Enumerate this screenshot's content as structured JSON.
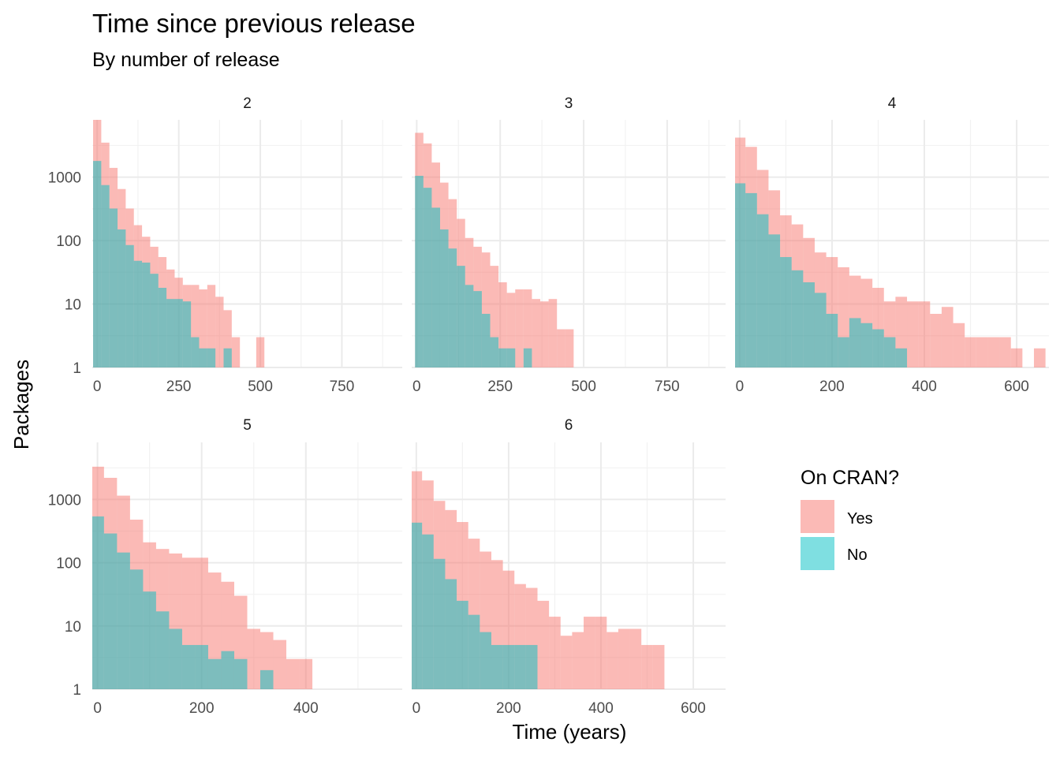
{
  "chart_data": {
    "type": "bar",
    "title": "Time since previous release",
    "subtitle": "By number of release",
    "xlabel": "Time (years)",
    "ylabel": "Packages",
    "yscale": "log10",
    "ylim": [
      1,
      8000
    ],
    "y_ticks": [
      1,
      10,
      100,
      1000
    ],
    "y_tick_labels": [
      "1",
      "10",
      "100",
      "1000"
    ],
    "grid": true,
    "legend": {
      "title": "On CRAN?",
      "placement": "right",
      "entries": [
        {
          "label": "Yes",
          "color": "#F8766D"
        },
        {
          "label": "No",
          "color": "#00BFC4"
        }
      ]
    },
    "panels": [
      {
        "strip": "2",
        "xlim": [
          -15,
          935
        ],
        "x_ticks": [
          0,
          250,
          500,
          750
        ],
        "x_tick_labels": [
          "0",
          "250",
          "500",
          "750"
        ],
        "bin_start": -12.5,
        "bin_width": 25,
        "series": [
          {
            "name": "Yes",
            "values": [
              8000,
              3500,
              1400,
              650,
              320,
              175,
              115,
              80,
              55,
              35,
              26,
              20,
              20,
              17,
              20,
              13,
              8,
              3,
              0,
              0,
              3
            ]
          },
          {
            "name": "No",
            "values": [
              1800,
              750,
              320,
              150,
              85,
              48,
              45,
              30,
              18,
              12,
              12,
              11,
              3,
              2,
              2,
              0,
              2,
              0,
              0,
              0,
              0
            ]
          }
        ]
      },
      {
        "strip": "3",
        "xlim": [
          -15,
          925
        ],
        "x_ticks": [
          0,
          250,
          500,
          750
        ],
        "x_tick_labels": [
          "0",
          "250",
          "500",
          "750"
        ],
        "bin_start": -5,
        "bin_width": 25,
        "series": [
          {
            "name": "Yes",
            "values": [
              5000,
              3400,
              1700,
              820,
              450,
              220,
              110,
              80,
              65,
              40,
              22,
              15,
              17,
              17,
              12,
              11,
              12,
              4,
              4,
              0,
              0,
              0,
              0,
              0,
              0,
              0,
              0,
              0,
              0,
              0,
              0,
              0,
              0,
              0,
              0,
              0,
              0,
              0,
              0,
              0,
              0,
              0,
              0,
              0,
              0,
              0,
              0,
              0
            ]
          },
          {
            "name": "No",
            "values": [
              1050,
              680,
              330,
              150,
              75,
              40,
              20,
              16,
              7,
              3,
              2,
              2,
              1,
              2,
              1
            ]
          }
        ]
      },
      {
        "strip": "4",
        "xlim": [
          -10,
          670
        ],
        "x_ticks": [
          0,
          200,
          400,
          600
        ],
        "x_tick_labels": [
          "0",
          "200",
          "400",
          "600"
        ],
        "bin_start": -12.5,
        "bin_width": 25,
        "series": [
          {
            "name": "Yes",
            "values": [
              4200,
              3000,
              1300,
              620,
              250,
              180,
              110,
              65,
              55,
              38,
              28,
              25,
              18,
              11,
              13,
              11,
              11,
              7,
              9,
              5,
              3,
              3,
              3,
              3,
              2,
              0,
              2
            ]
          },
          {
            "name": "No",
            "values": [
              800,
              560,
              260,
              125,
              55,
              34,
              22,
              15,
              7,
              3,
              6,
              5,
              4,
              3,
              2
            ]
          }
        ]
      },
      {
        "strip": "5",
        "xlim": [
          -10,
          585
        ],
        "x_ticks": [
          0,
          200,
          400
        ],
        "x_tick_labels": [
          "0",
          "200",
          "400"
        ],
        "bin_start": -12.5,
        "bin_width": 25,
        "series": [
          {
            "name": "Yes",
            "values": [
              3300,
              2200,
              1150,
              480,
              210,
              165,
              140,
              120,
              120,
              70,
              50,
              30,
              9,
              8,
              6,
              3,
              3,
              1,
              1,
              1,
              0,
              0,
              0
            ]
          },
          {
            "name": "No",
            "values": [
              540,
              290,
              145,
              78,
              35,
              17,
              9,
              5,
              5,
              3,
              4,
              3,
              1,
              2
            ]
          }
        ]
      },
      {
        "strip": "6",
        "xlim": [
          -10,
          670
        ],
        "x_ticks": [
          0,
          200,
          400,
          600
        ],
        "x_tick_labels": [
          "0",
          "200",
          "400",
          "600"
        ],
        "bin_start": -12.5,
        "bin_width": 25,
        "series": [
          {
            "name": "Yes",
            "values": [
              2800,
              2000,
              950,
              680,
              440,
              240,
              150,
              110,
              75,
              46,
              40,
              25,
              14,
              7,
              8,
              14,
              14,
              8,
              9,
              9,
              5,
              5,
              0,
              0,
              0,
              0,
              0
            ]
          },
          {
            "name": "No",
            "values": [
              430,
              280,
              115,
              55,
              25,
              15,
              8,
              5,
              5,
              5,
              5
            ]
          }
        ]
      }
    ]
  }
}
